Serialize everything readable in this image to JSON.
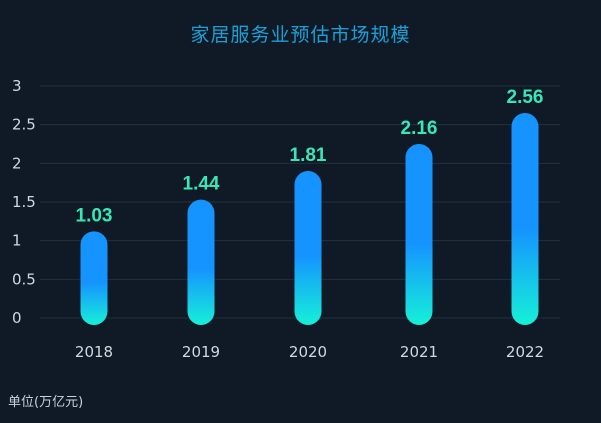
{
  "chart_data": {
    "type": "bar",
    "title": "家居服务业预估市场规模",
    "unit_label": "单位(万亿元)",
    "categories": [
      "2018",
      "2019",
      "2020",
      "2021",
      "2022"
    ],
    "values": [
      1.03,
      1.44,
      1.81,
      2.16,
      2.56
    ],
    "value_labels": [
      "1.03",
      "1.44",
      "1.81",
      "2.16",
      "2.56"
    ],
    "yticks": [
      "0",
      "0.5",
      "1",
      "1.5",
      "2",
      "2.5",
      "3"
    ],
    "ylim": [
      0,
      3
    ],
    "grid": true,
    "legend": "none",
    "colors": {
      "background": "#0f1a26",
      "bar_top": "#1594ff",
      "bar_bottom": "#16f0d8",
      "value_label": "#39e6b5",
      "title": "#1aa0d6",
      "tick_label": "#d0d8e0",
      "grid": "#22323f"
    }
  }
}
